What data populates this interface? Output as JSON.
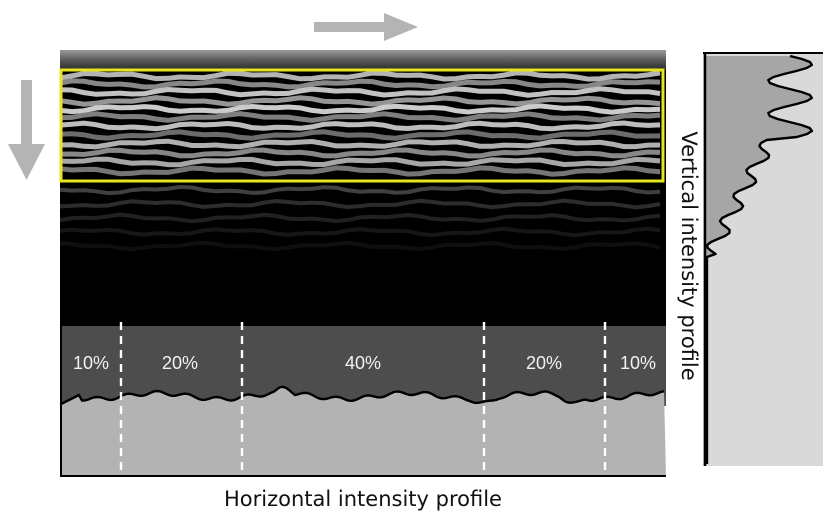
{
  "horizontal_title": "Horizontal intensity profile",
  "vertical_title": "Vertical intensity profile",
  "segments": [
    "10%",
    "20%",
    "40%",
    "20%",
    "10%"
  ],
  "colors": {
    "roi_outline": "#e6e61e",
    "arrow": "#b4b4b4",
    "profile_dark": "#4d4d4d",
    "profile_light": "#b3b3b3",
    "panel_light": "#d9d9d9",
    "panel_mid": "#a6a6a6",
    "curve": "#000000"
  },
  "icons": {
    "scan_direction_horizontal": "arrow-right-icon",
    "scan_direction_vertical": "arrow-down-icon"
  }
}
